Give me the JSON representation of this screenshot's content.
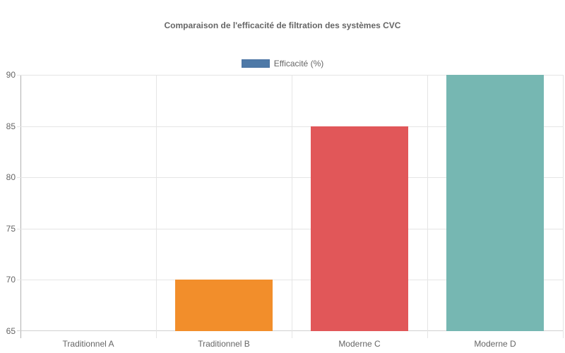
{
  "chart_data": {
    "type": "bar",
    "title": "Comparaison de l'efficacité de filtration des systèmes CVC",
    "xlabel": "",
    "ylabel": "",
    "categories": [
      "Traditionnel A",
      "Traditionnel B",
      "Moderne C",
      "Moderne D"
    ],
    "series": [
      {
        "name": "Efficacité (%)",
        "values": [
          65,
          70,
          85,
          90
        ],
        "colors": [
          "#4e79a7",
          "#f28e2b",
          "#e15759",
          "#76b7b2"
        ]
      }
    ],
    "ylim": [
      65,
      90
    ],
    "yticks": [
      "90",
      "85",
      "80",
      "75",
      "70",
      "65"
    ],
    "grid": true,
    "legend_position": "top",
    "legend_color": "#4e79a7"
  }
}
